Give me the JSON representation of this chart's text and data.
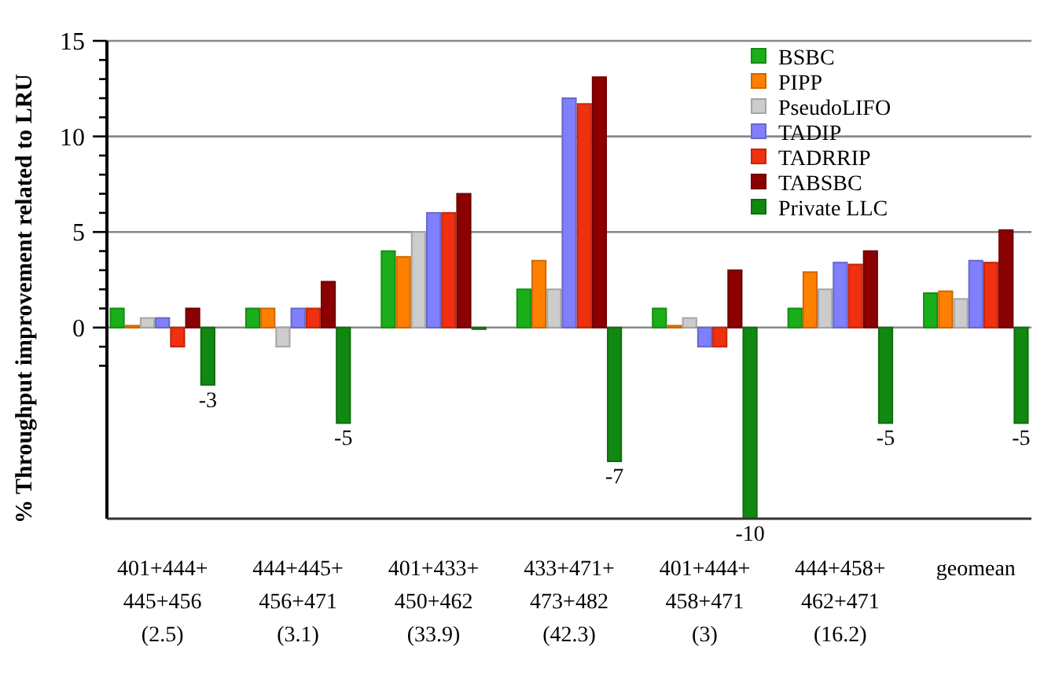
{
  "chart_data": {
    "type": "bar",
    "ylabel": "% Throughput improvement related to LRU",
    "categories": [
      "401+444+\n445+456\n(2.5)",
      "444+445+\n456+471\n(3.1)",
      "401+433+\n450+462\n(33.9)",
      "433+471+\n473+482\n(42.3)",
      "401+444+\n458+471\n(3)",
      "444+458+\n462+471\n(16.2)",
      "geomean"
    ],
    "series": [
      {
        "name": "BSBC",
        "color": "#1aaf1a",
        "values": [
          1,
          1,
          4,
          2,
          1,
          1,
          1.8
        ]
      },
      {
        "name": "PIPP",
        "color": "#ff8000",
        "values": [
          0.1,
          1,
          3.7,
          3.5,
          0.1,
          2.9,
          1.9
        ]
      },
      {
        "name": "PseudoLIFO",
        "color": "#cccccc",
        "values": [
          0.5,
          -1,
          5,
          2,
          0.5,
          2,
          1.5
        ]
      },
      {
        "name": "TADIP",
        "color": "#8080ff",
        "values": [
          0.5,
          1,
          6,
          12,
          -1,
          3.4,
          3.5
        ]
      },
      {
        "name": "TADRRIP",
        "color": "#f03010",
        "values": [
          -1,
          1,
          6,
          11.7,
          -1,
          3.3,
          3.4
        ]
      },
      {
        "name": "TABSBC",
        "color": "#8b0000",
        "values": [
          1,
          2.4,
          7,
          13.1,
          3,
          4,
          5.1
        ]
      },
      {
        "name": "Private LLC",
        "color": "#118811",
        "values": [
          -3,
          -5,
          0,
          -7,
          -10,
          -5,
          -5
        ],
        "value_labels": [
          "-3",
          "-5",
          null,
          "-7",
          "-10",
          "-5",
          "-5"
        ]
      }
    ],
    "ylim": [
      -10,
      15
    ],
    "yticks": [
      {
        "value": -2,
        "label": null
      },
      {
        "value": -1,
        "label": null
      },
      0,
      {
        "value": 1,
        "label": null
      },
      {
        "value": 2,
        "label": null
      },
      {
        "value": 3,
        "label": null
      },
      {
        "value": 4,
        "label": null
      },
      5,
      {
        "value": 6,
        "label": null
      },
      {
        "value": 7,
        "label": null
      },
      {
        "value": 8,
        "label": null
      },
      {
        "value": 9,
        "label": null
      },
      10,
      {
        "value": 11,
        "label": null
      },
      {
        "value": 12,
        "label": null
      },
      {
        "value": 13,
        "label": null
      },
      {
        "value": 14,
        "label": null
      },
      15
    ],
    "grid": "y",
    "legend": "top right"
  }
}
